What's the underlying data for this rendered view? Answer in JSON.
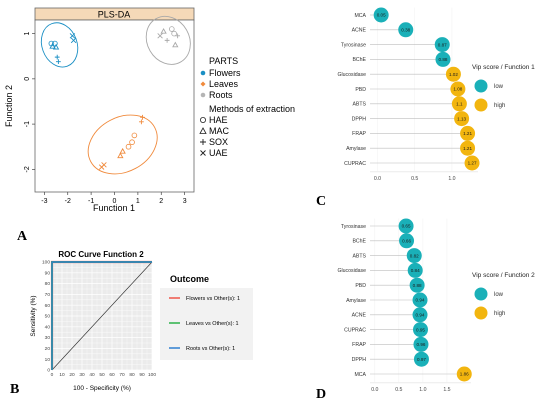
{
  "panel_letters": [
    "A",
    "B",
    "C",
    "D"
  ],
  "chart_data": [
    {
      "type": "scatter",
      "title": "PLS-DA",
      "xlabel": "Function 1",
      "ylabel": "Function 2",
      "xlim": [
        -3.4,
        3.4
      ],
      "ylim": [
        -2.5,
        1.3
      ],
      "xticks": [
        "-3",
        "-2",
        "-1",
        "0",
        "1",
        "2",
        "3"
      ],
      "yticks": [
        "1",
        "0",
        "-1",
        "-2"
      ],
      "legend": {
        "parts_title": "PARTS",
        "parts": [
          {
            "name": "Flowers",
            "color": "#1a8fc4"
          },
          {
            "name": "Leaves",
            "color": "#f08a3c"
          },
          {
            "name": "Roots",
            "color": "#b5b5b5"
          }
        ],
        "methods_title": "Methods of extraction",
        "methods": [
          {
            "name": "HAE",
            "symbol": "circle"
          },
          {
            "name": "MAC",
            "symbol": "triangle"
          },
          {
            "name": "SOX",
            "symbol": "plus"
          },
          {
            "name": "UAE",
            "symbol": "cross"
          }
        ]
      },
      "series": [
        {
          "name": "Flowers",
          "color": "#1a8fc4",
          "ellipse": {
            "cx": -2.35,
            "cy": 0.75,
            "rx": 0.75,
            "ry": 0.5,
            "angle": 20
          },
          "points": [
            {
              "x": -2.7,
              "y": 0.78,
              "m": "circle"
            },
            {
              "x": -2.55,
              "y": 0.78,
              "m": "circle"
            },
            {
              "x": -2.65,
              "y": 0.72,
              "m": "triangle"
            },
            {
              "x": -2.5,
              "y": 0.7,
              "m": "triangle"
            },
            {
              "x": -2.45,
              "y": 0.48,
              "m": "plus"
            },
            {
              "x": -2.4,
              "y": 0.38,
              "m": "plus"
            },
            {
              "x": -1.8,
              "y": 0.95,
              "m": "cross"
            },
            {
              "x": -1.75,
              "y": 0.85,
              "m": "cross"
            }
          ]
        },
        {
          "name": "Leaves",
          "color": "#f08a3c",
          "ellipse": {
            "cx": 0.35,
            "cy": -1.45,
            "rx": 1.55,
            "ry": 0.6,
            "angle": 28
          },
          "points": [
            {
              "x": -0.55,
              "y": -1.95,
              "m": "cross"
            },
            {
              "x": -0.45,
              "y": -1.9,
              "m": "cross"
            },
            {
              "x": 0.25,
              "y": -1.7,
              "m": "triangle"
            },
            {
              "x": 0.35,
              "y": -1.6,
              "m": "triangle"
            },
            {
              "x": 0.6,
              "y": -1.5,
              "m": "circle"
            },
            {
              "x": 0.75,
              "y": -1.4,
              "m": "circle"
            },
            {
              "x": 0.85,
              "y": -1.25,
              "m": "circle"
            },
            {
              "x": 1.15,
              "y": -0.95,
              "m": "plus"
            },
            {
              "x": 1.2,
              "y": -0.85,
              "m": "plus"
            }
          ]
        },
        {
          "name": "Roots",
          "color": "#a9a9a9",
          "ellipse": {
            "cx": 2.3,
            "cy": 0.85,
            "rx": 0.9,
            "ry": 0.55,
            "angle": 30
          },
          "points": [
            {
              "x": 1.95,
              "y": 0.95,
              "m": "cross"
            },
            {
              "x": 2.1,
              "y": 1.05,
              "m": "triangle"
            },
            {
              "x": 2.25,
              "y": 0.85,
              "m": "plus"
            },
            {
              "x": 2.45,
              "y": 1.1,
              "m": "circle"
            },
            {
              "x": 2.55,
              "y": 1.0,
              "m": "circle"
            },
            {
              "x": 2.6,
              "y": 0.75,
              "m": "triangle"
            },
            {
              "x": 2.7,
              "y": 0.95,
              "m": "plus"
            }
          ]
        }
      ]
    },
    {
      "type": "line",
      "title": "ROC Curve Function 2",
      "xlabel": "100 - Specificity (%)",
      "ylabel": "Sensitivity (%)",
      "xlim": [
        0,
        100
      ],
      "ylim": [
        0,
        100
      ],
      "ticks": [
        "0",
        "10",
        "20",
        "30",
        "40",
        "50",
        "60",
        "70",
        "80",
        "90",
        "100"
      ],
      "legend_title": "Outcome",
      "series": [
        {
          "name": "Flowers vs Other(s): 1",
          "color": "#f0564b",
          "x": [
            0,
            0,
            100
          ],
          "y": [
            0,
            100,
            100
          ]
        },
        {
          "name": "Leaves vs Other(s): 1",
          "color": "#2db34a",
          "x": [
            0,
            0,
            100
          ],
          "y": [
            0,
            100,
            100
          ]
        },
        {
          "name": "Roots vs Other(s): 1",
          "color": "#2f7fd1",
          "x": [
            0,
            0,
            100
          ],
          "y": [
            0,
            100,
            100
          ]
        }
      ],
      "reference_line": {
        "x": [
          0,
          100
        ],
        "y": [
          0,
          100
        ]
      }
    },
    {
      "type": "scatter",
      "title": "",
      "xlim": [
        -0.1,
        1.35
      ],
      "xticks": [
        "0.0",
        "0.5",
        "1.0"
      ],
      "legend_title": "Vip score / Function 1",
      "legend": [
        {
          "name": "low",
          "color": "#1ab0b8"
        },
        {
          "name": "high",
          "color": "#f2b50f"
        }
      ],
      "categories": [
        "MCA",
        "ACNE",
        "Tyrosinase",
        "BChE",
        "Glucosidase",
        "PBD",
        "ABTS",
        "DPPH",
        "FRAP",
        "Amylase",
        "CUPRAC"
      ],
      "values": [
        0.05,
        0.38,
        0.87,
        0.88,
        1.02,
        1.08,
        1.1,
        1.13,
        1.21,
        1.21,
        1.27
      ],
      "labels": [
        "0.05",
        "0.38",
        "0.87",
        "0.88",
        "1.02",
        "1.08",
        "1.1",
        "1.13",
        "1.21",
        "1.21",
        "1.27"
      ],
      "groups": [
        "low",
        "low",
        "low",
        "low",
        "high",
        "high",
        "high",
        "high",
        "high",
        "high",
        "high"
      ]
    },
    {
      "type": "scatter",
      "title": "",
      "xlim": [
        -0.1,
        2.0
      ],
      "xticks": [
        "0.0",
        "0.5",
        "1.0",
        "1.5"
      ],
      "legend_title": "Vip score / Function 2",
      "legend": [
        {
          "name": "low",
          "color": "#1ab0b8"
        },
        {
          "name": "high",
          "color": "#f2b50f"
        }
      ],
      "categories": [
        "Tyrosinase",
        "BChE",
        "ABTS",
        "Glucosidase",
        "PBD",
        "Amylase",
        "ACNE",
        "CUPRAC",
        "FRAP",
        "DPPH",
        "MCA"
      ],
      "values": [
        0.65,
        0.66,
        0.82,
        0.84,
        0.88,
        0.94,
        0.94,
        0.95,
        0.96,
        0.97,
        1.86
      ],
      "labels": [
        "0.65",
        "0.66",
        "0.82",
        "0.84",
        "0.88",
        "0.94",
        "0.94",
        "0.95",
        "0.96",
        "0.97",
        "1.86"
      ],
      "groups": [
        "low",
        "low",
        "low",
        "low",
        "low",
        "low",
        "low",
        "low",
        "low",
        "low",
        "high"
      ]
    }
  ]
}
